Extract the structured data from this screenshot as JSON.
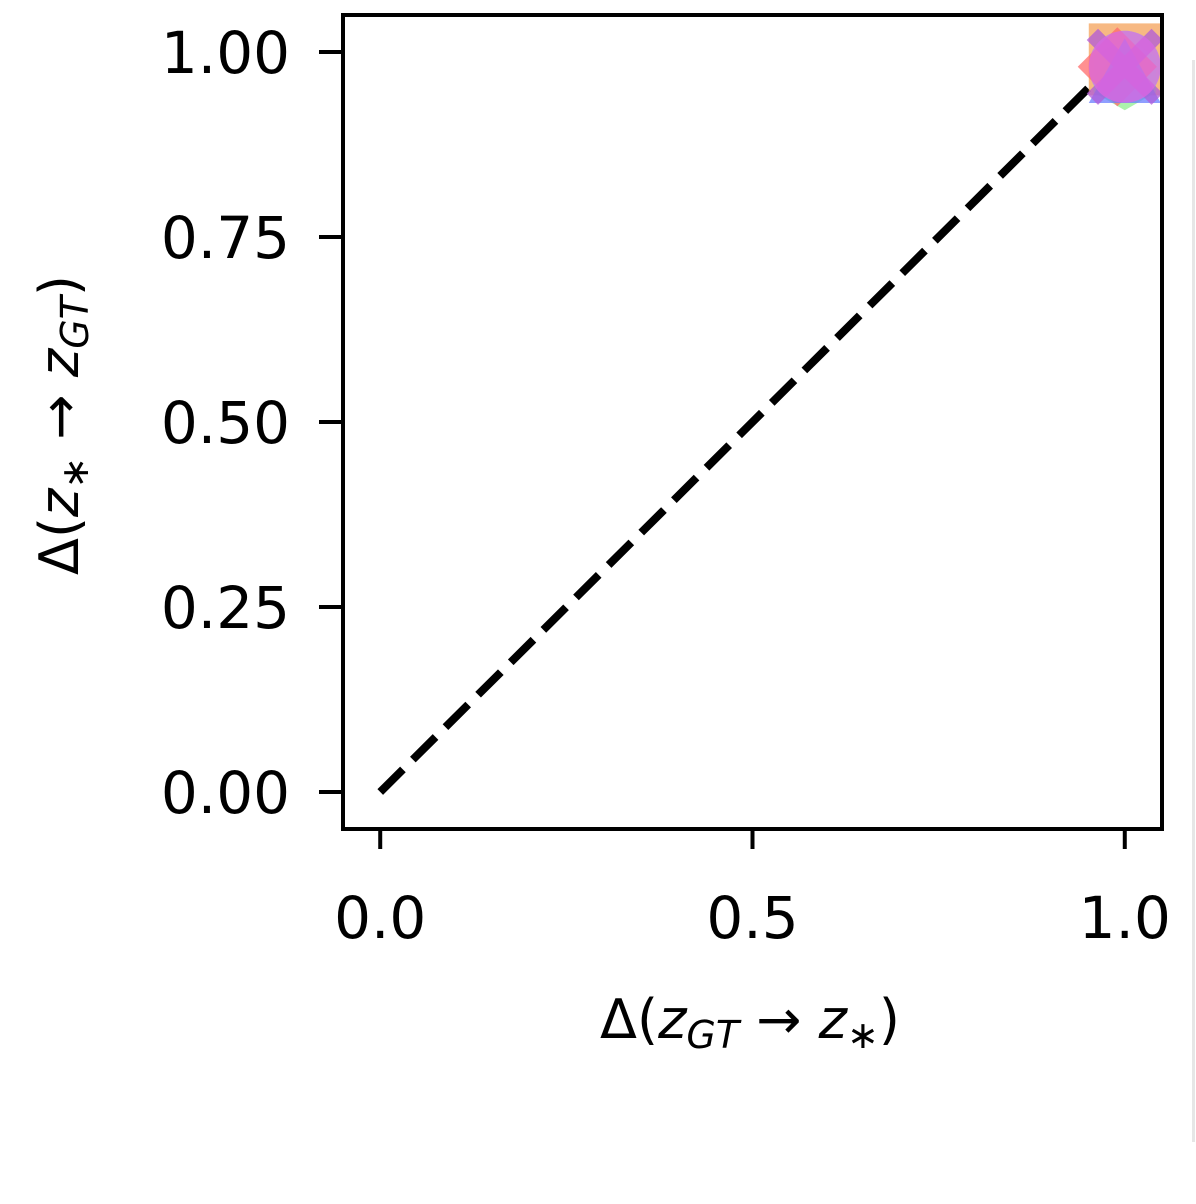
{
  "chart_data": {
    "type": "scatter",
    "xlabel": "Δ(zGT → z*)",
    "ylabel": "Δ(z* → zGT)",
    "xlim": [
      -0.05,
      1.05
    ],
    "ylim": [
      -0.05,
      1.05
    ],
    "xticks": [
      0.0,
      0.5,
      1.0
    ],
    "xtick_labels": [
      "0.0",
      "0.5",
      "1.0"
    ],
    "yticks": [
      0.0,
      0.25,
      0.5,
      0.75,
      1.0
    ],
    "ytick_labels": [
      "0.00",
      "0.25",
      "0.50",
      "0.75",
      "1.00"
    ],
    "grid": false,
    "reference_line": {
      "from": [
        0,
        0
      ],
      "to": [
        1,
        1
      ],
      "style": "dashed",
      "color": "#000000"
    },
    "series": [
      {
        "marker": "square",
        "color": "#f4a259",
        "x": 1.0,
        "y": 0.99
      },
      {
        "marker": "hexagon",
        "color": "#90ee90",
        "x": 1.0,
        "y": 0.97
      },
      {
        "marker": "circle",
        "color": "#7fe0d8",
        "x": 1.0,
        "y": 0.98
      },
      {
        "marker": "diamond",
        "color": "#ff6b6b",
        "x": 0.99,
        "y": 0.98
      },
      {
        "marker": "triangle",
        "color": "#6a7dff",
        "x": 1.0,
        "y": 0.97
      },
      {
        "marker": "x",
        "color": "#b05bd9",
        "x": 1.0,
        "y": 0.98
      },
      {
        "marker": "circle",
        "color": "#e066e0",
        "x": 1.0,
        "y": 0.98
      }
    ]
  }
}
